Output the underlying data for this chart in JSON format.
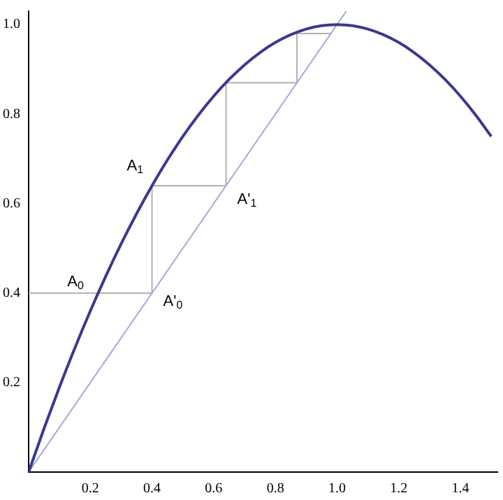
{
  "chart_data": {
    "type": "line",
    "xlim": [
      0,
      1.52
    ],
    "ylim": [
      0,
      1.03
    ],
    "xticks": [
      0.2,
      0.4,
      0.6,
      0.8,
      {
        "value": 1,
        "label": "1.0"
      },
      1.2,
      1.4
    ],
    "yticks": [
      0.2,
      0.4,
      0.6,
      0.8,
      {
        "value": 1,
        "label": "1.0"
      }
    ],
    "grid": false,
    "legend": false,
    "marker": "none",
    "series": [
      {
        "color": "#3b3890",
        "x": [
          0,
          0.05,
          0.1,
          0.15,
          0.2,
          0.25,
          0.3,
          0.35,
          0.4,
          0.45,
          0.5,
          0.55,
          0.6,
          0.65,
          0.7,
          0.75,
          0.8,
          0.85,
          0.9,
          0.95,
          1,
          1.05,
          1.1,
          1.15,
          1.2,
          1.25,
          1.3,
          1.35,
          1.4,
          1.45,
          1.5
        ],
        "values": [
          0,
          0.0975,
          0.19,
          0.2775,
          0.36,
          0.4375,
          0.51,
          0.5775,
          0.64,
          0.6975,
          0.75,
          0.7975,
          0.84,
          0.8775,
          0.91,
          0.9375,
          0.96,
          0.9775,
          0.99,
          0.9975,
          1,
          0.9975,
          0.99,
          0.9775,
          0.96,
          0.9375,
          0.91,
          0.8775,
          0.84,
          0.7975,
          0.75
        ]
      },
      {
        "color": "#a9a6d9",
        "x": [
          0,
          1.03
        ],
        "values": [
          0,
          1.03
        ]
      },
      {
        "color": "#b0b0b0",
        "x": [
          0,
          0.4,
          0.4,
          0.64,
          0.64,
          0.87,
          0.87,
          0.98
        ],
        "values": [
          0.4,
          0.4,
          0.64,
          0.64,
          0.87,
          0.87,
          0.98,
          0.98
        ]
      }
    ],
    "annotations": [
      {
        "text": "A$_{0}$",
        "x": 0.225,
        "y": 0.4
      },
      {
        "text": "A'$_{0}$",
        "x": 0.4,
        "y": 0.4
      },
      {
        "text": "A$_{1}$",
        "x": 0.4,
        "y": 0.64
      },
      {
        "text": "A'$_{1}$",
        "x": 0.64,
        "y": 0.64
      }
    ]
  }
}
